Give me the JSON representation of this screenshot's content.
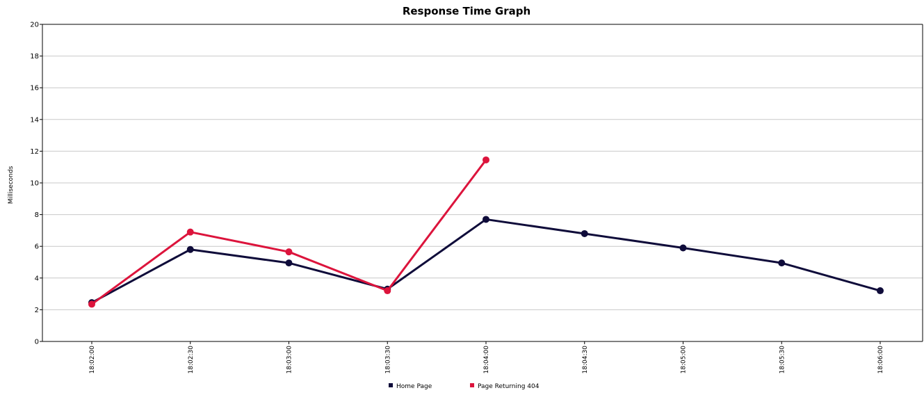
{
  "chart_data": {
    "type": "line",
    "title": "Response Time Graph",
    "xlabel": "",
    "ylabel": "Milliseconds",
    "ylim": [
      0,
      20
    ],
    "yticks": [
      0,
      2,
      4,
      6,
      8,
      10,
      12,
      14,
      16,
      18,
      20
    ],
    "categories": [
      "18:02:00",
      "18:02:30",
      "18:03:00",
      "18:03:30",
      "18:04:00",
      "18:04:30",
      "18:05:00",
      "18:05:30",
      "18:06:00"
    ],
    "grid": true,
    "legend_position": "bottom",
    "series": [
      {
        "name": "Home Page",
        "color": "#0f0c3a",
        "values": [
          2.45,
          5.8,
          4.95,
          3.3,
          7.7,
          6.8,
          5.9,
          4.95,
          3.2
        ]
      },
      {
        "name": "Page Returning 404",
        "color": "#dc143c",
        "values": [
          2.35,
          6.9,
          5.65,
          3.2,
          11.45,
          null,
          null,
          null,
          null
        ]
      }
    ]
  }
}
